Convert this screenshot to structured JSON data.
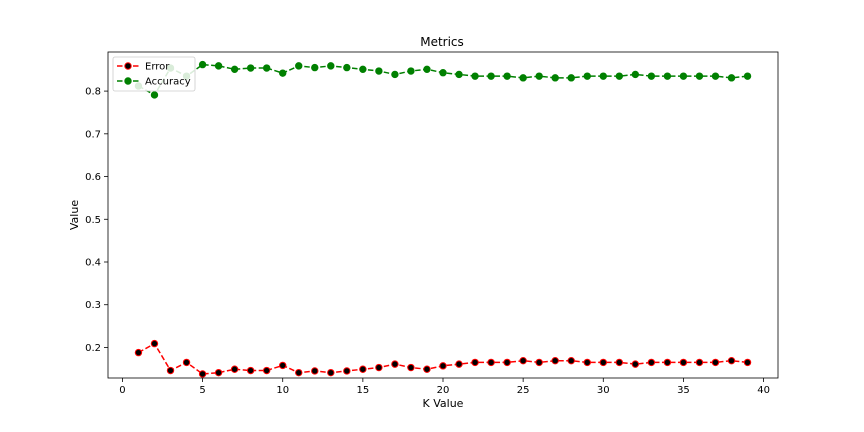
{
  "chart_data": {
    "type": "line",
    "title": "Metrics",
    "xlabel": "K Value",
    "ylabel": "Value",
    "xlim": [
      -0.9,
      40.9
    ],
    "ylim": [
      0.1285,
      0.8915
    ],
    "x_ticks": [
      0,
      5,
      10,
      15,
      20,
      25,
      30,
      35,
      40
    ],
    "y_ticks": [
      0.2,
      0.3,
      0.4,
      0.5,
      0.6,
      0.7,
      0.8
    ],
    "grid": false,
    "legend_position": "top-left",
    "x": [
      1,
      2,
      3,
      4,
      5,
      6,
      7,
      8,
      9,
      10,
      11,
      12,
      13,
      14,
      15,
      16,
      17,
      18,
      19,
      20,
      21,
      22,
      23,
      24,
      25,
      26,
      27,
      28,
      29,
      30,
      31,
      32,
      33,
      34,
      35,
      36,
      37,
      38,
      39
    ],
    "series": [
      {
        "name": "Error",
        "line_color": "#ff0000",
        "marker_color": "#000000",
        "values": [
          0.188,
          0.209,
          0.146,
          0.165,
          0.138,
          0.141,
          0.149,
          0.146,
          0.146,
          0.158,
          0.141,
          0.145,
          0.141,
          0.145,
          0.149,
          0.153,
          0.161,
          0.153,
          0.149,
          0.157,
          0.161,
          0.165,
          0.165,
          0.165,
          0.169,
          0.165,
          0.169,
          0.169,
          0.165,
          0.165,
          0.165,
          0.161,
          0.165,
          0.165,
          0.165,
          0.165,
          0.165,
          0.169,
          0.165
        ]
      },
      {
        "name": "Accuracy",
        "line_color": "#008000",
        "marker_color": "#008000",
        "values": [
          0.812,
          0.791,
          0.854,
          0.835,
          0.862,
          0.859,
          0.851,
          0.854,
          0.854,
          0.842,
          0.859,
          0.855,
          0.859,
          0.855,
          0.851,
          0.847,
          0.839,
          0.847,
          0.851,
          0.843,
          0.839,
          0.835,
          0.835,
          0.835,
          0.831,
          0.835,
          0.831,
          0.831,
          0.835,
          0.835,
          0.835,
          0.839,
          0.835,
          0.835,
          0.835,
          0.835,
          0.835,
          0.831,
          0.835
        ]
      }
    ]
  }
}
